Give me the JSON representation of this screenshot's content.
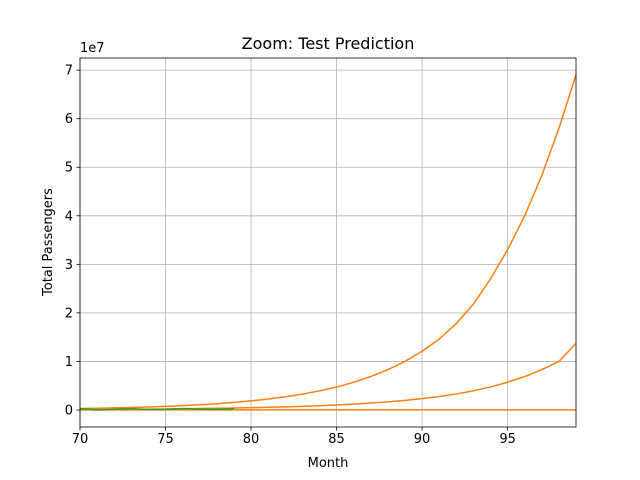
{
  "chart_data": {
    "type": "line",
    "title": "Zoom: Test Prediction",
    "xlabel": "Month",
    "ylabel": "Total Passengers",
    "y_scale_label": "1e7",
    "xlim": [
      70,
      99
    ],
    "ylim": [
      -3500000,
      72500000
    ],
    "x_ticks": [
      70,
      75,
      80,
      85,
      90,
      95
    ],
    "y_ticks": [
      0,
      10000000,
      20000000,
      30000000,
      40000000,
      50000000,
      60000000,
      70000000
    ],
    "y_tick_labels": [
      "0",
      "1",
      "2",
      "3",
      "4",
      "5",
      "6",
      "7"
    ],
    "grid": true,
    "colors": {
      "orange": "#ff7f0e",
      "green": "#2ca02c",
      "grid": "#b0b0b0"
    },
    "series": [
      {
        "color": "#ff7f0e",
        "x": [
          70,
          71,
          72,
          73,
          74,
          75,
          76,
          77,
          78,
          79,
          80,
          81,
          82,
          83,
          84,
          85,
          86,
          87,
          88,
          89,
          90,
          91,
          92,
          93,
          94,
          95,
          96,
          97,
          98,
          99
        ],
        "values": [
          300000,
          360000,
          430000,
          520000,
          620000,
          750000,
          900000,
          1080000,
          1300000,
          1560000,
          1880000,
          2260000,
          2720000,
          3270000,
          3930000,
          4730000,
          5700000,
          6900000,
          8300000,
          10000000,
          12100000,
          14600000,
          17800000,
          21800000,
          27000000,
          33000000,
          40000000,
          48300000,
          58000000,
          69000000
        ]
      },
      {
        "color": "#ff7f0e",
        "x": [
          70,
          71,
          72,
          73,
          74,
          75,
          76,
          77,
          78,
          79,
          80,
          81,
          82,
          83,
          84,
          85,
          86,
          87,
          88,
          89,
          90,
          91,
          92,
          93,
          94,
          95,
          96,
          97,
          98,
          99
        ],
        "values": [
          100000,
          120000,
          140000,
          160000,
          190000,
          220000,
          260000,
          300000,
          350000,
          410000,
          480000,
          560000,
          650000,
          760000,
          890000,
          1040000,
          1220000,
          1430000,
          1680000,
          1980000,
          2340000,
          2780000,
          3310000,
          3950000,
          4750000,
          5720000,
          6900000,
          8300000,
          10000000,
          13700000
        ]
      },
      {
        "color": "#ff7f0e",
        "x": [
          70,
          71,
          72,
          73,
          74,
          75,
          76,
          77,
          78,
          79,
          80,
          81,
          82,
          83,
          84,
          85,
          86,
          87,
          88,
          89,
          90,
          91,
          92,
          93,
          94,
          95,
          96,
          97,
          98,
          99
        ],
        "values": [
          20000,
          20000,
          20000,
          20000,
          20000,
          20000,
          20000,
          20000,
          20000,
          20000,
          20000,
          20000,
          20000,
          20000,
          20000,
          20000,
          20000,
          20000,
          20000,
          20000,
          20000,
          20000,
          20000,
          20000,
          20000,
          20000,
          20000,
          20000,
          20000,
          20000
        ]
      },
      {
        "color": "#2ca02c",
        "x": [
          70,
          71,
          72,
          73,
          74,
          75,
          76,
          77,
          78,
          79
        ],
        "values": [
          250000,
          0,
          120000,
          280000,
          80000,
          120000,
          300000,
          150000,
          120000,
          250000
        ]
      }
    ]
  }
}
